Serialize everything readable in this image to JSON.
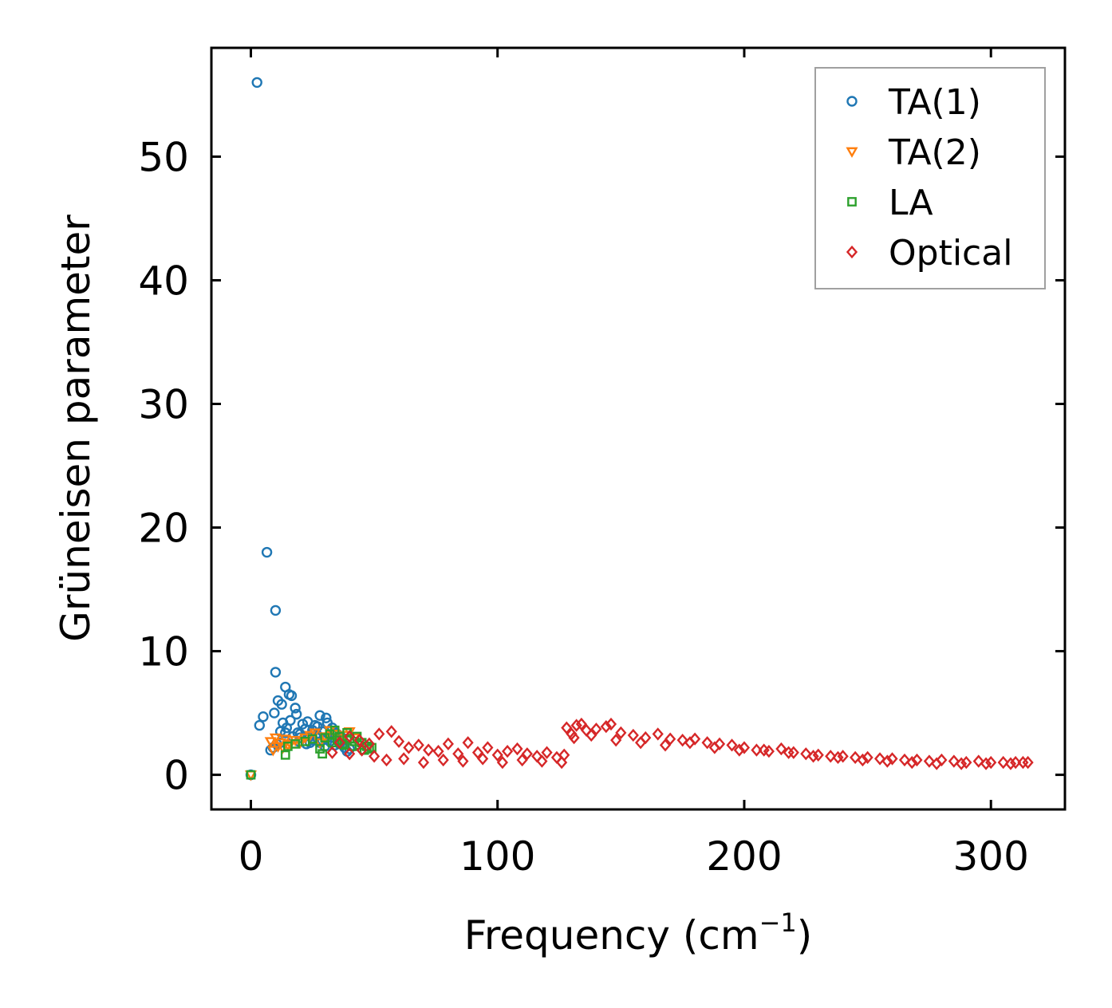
{
  "chart_data": {
    "type": "scatter",
    "title": "",
    "xlabel": "Frequency (cm",
    "xlabel_superscript": "−1",
    "xlabel_suffix": ")",
    "ylabel": "Grüneisen parameter",
    "xlim": [
      -16,
      330
    ],
    "ylim": [
      -2.8,
      58.8
    ],
    "xticks": [
      0,
      100,
      200,
      300
    ],
    "xtick_labels": [
      "0",
      "100",
      "200",
      "300"
    ],
    "yticks": [
      0,
      10,
      20,
      30,
      40,
      50
    ],
    "ytick_labels": [
      "0",
      "10",
      "20",
      "30",
      "40",
      "50"
    ],
    "grid": false,
    "legend_position": "top-right",
    "series": [
      {
        "name": "TA(1)",
        "marker": "circle",
        "color": "#1f77b4",
        "x": [
          0,
          2.5,
          6.5,
          10,
          10,
          3.5,
          5,
          8,
          9,
          9.5,
          10.5,
          11,
          12,
          12.5,
          13,
          14,
          14.5,
          15.5,
          16,
          16.5,
          17,
          18,
          18.5,
          19,
          19.5,
          20,
          21,
          22,
          22.5,
          23,
          24,
          25,
          25.5,
          26,
          26.5,
          27,
          28,
          28,
          29,
          30,
          30.5,
          31,
          32,
          33,
          34,
          35,
          36,
          37,
          38,
          39,
          40,
          12,
          14,
          20,
          24,
          27,
          29,
          31,
          34,
          36
        ],
        "y": [
          0,
          56,
          18,
          13.3,
          8.3,
          4,
          4.7,
          2,
          2.2,
          5,
          2.5,
          6,
          3.5,
          5.7,
          4.2,
          7.1,
          3.8,
          6.5,
          4.4,
          6.4,
          3.1,
          5.4,
          4.9,
          3.4,
          2.7,
          3.3,
          4.1,
          3.7,
          2.5,
          4.3,
          3.1,
          3.6,
          2.8,
          4.0,
          3.2,
          3.9,
          2.6,
          4.8,
          3.5,
          2.3,
          4.6,
          3.0,
          2.7,
          3.8,
          2.4,
          3.3,
          2.6,
          3.0,
          2.2,
          1.9,
          2.1,
          2.6,
          3.4,
          3.0,
          2.6,
          3.2,
          2.8,
          4.2,
          3.4,
          2.5
        ]
      },
      {
        "name": "TA(2)",
        "marker": "triangle-down",
        "color": "#ff7f0e",
        "x": [
          0,
          8,
          9,
          10,
          11,
          12,
          13,
          14,
          15,
          16,
          18,
          20,
          22,
          24,
          26,
          28,
          30,
          32,
          34,
          36,
          38,
          40,
          42
        ],
        "y": [
          0,
          2.7,
          2.0,
          3.0,
          2.3,
          2.6,
          2.2,
          2.9,
          2.4,
          2.5,
          2.8,
          2.6,
          3.0,
          3.2,
          3.4,
          2.6,
          3.1,
          3.6,
          3.3,
          2.9,
          3.2,
          3.5,
          3.0
        ]
      },
      {
        "name": "LA",
        "marker": "square",
        "color": "#2ca02c",
        "x": [
          0,
          14,
          15,
          18,
          22,
          25,
          28,
          29,
          30,
          32,
          33,
          34,
          35,
          36,
          37,
          38,
          39,
          40,
          41,
          42,
          43,
          44,
          45,
          46,
          47,
          48,
          49
        ],
        "y": [
          0,
          1.6,
          2.3,
          2.5,
          2.7,
          2.9,
          2.1,
          1.7,
          3.0,
          3.3,
          2.6,
          3.6,
          2.8,
          3.1,
          2.5,
          2.4,
          3.4,
          2.9,
          2.3,
          2.7,
          3.1,
          2.4,
          2.6,
          2.0,
          2.3,
          2.1,
          2.2
        ]
      },
      {
        "name": "Optical",
        "marker": "diamond",
        "color": "#d62728",
        "x": [
          33,
          36,
          40,
          44,
          48,
          52,
          57,
          60,
          64,
          68,
          72,
          76,
          80,
          84,
          88,
          92,
          96,
          100,
          104,
          108,
          112,
          116,
          120,
          124,
          127,
          128,
          130,
          132,
          134,
          136,
          140,
          144,
          146,
          150,
          155,
          160,
          165,
          170,
          175,
          180,
          185,
          190,
          195,
          200,
          205,
          210,
          215,
          220,
          225,
          230,
          235,
          240,
          245,
          250,
          255,
          260,
          265,
          270,
          275,
          280,
          285,
          290,
          295,
          300,
          305,
          310,
          315,
          40,
          45,
          50,
          55,
          62,
          70,
          78,
          86,
          94,
          102,
          110,
          118,
          126,
          131,
          138,
          148,
          158,
          168,
          178,
          188,
          198,
          208,
          218,
          228,
          238,
          248,
          258,
          268,
          278,
          288,
          298,
          308,
          313
        ],
        "y": [
          1.8,
          2.6,
          3.1,
          2.8,
          2.5,
          3.3,
          3.5,
          2.7,
          2.2,
          2.4,
          2.0,
          1.9,
          2.5,
          1.7,
          2.6,
          1.8,
          2.2,
          1.6,
          1.9,
          2.1,
          1.7,
          1.5,
          1.8,
          1.4,
          1.6,
          3.8,
          3.3,
          4.0,
          4.1,
          3.6,
          3.7,
          3.9,
          4.1,
          3.4,
          3.2,
          3.0,
          3.3,
          2.9,
          2.8,
          2.9,
          2.6,
          2.5,
          2.4,
          2.2,
          2.0,
          1.9,
          2.1,
          1.8,
          1.7,
          1.6,
          1.5,
          1.5,
          1.4,
          1.4,
          1.3,
          1.3,
          1.2,
          1.2,
          1.1,
          1.2,
          1.1,
          1.0,
          1.1,
          1.0,
          1.0,
          1.0,
          1.0,
          1.7,
          2.0,
          1.5,
          1.2,
          1.3,
          1.0,
          1.2,
          1.1,
          1.3,
          1.0,
          1.2,
          1.1,
          1.0,
          3.0,
          3.2,
          2.8,
          2.6,
          2.4,
          2.6,
          2.2,
          2.0,
          2.0,
          1.8,
          1.5,
          1.4,
          1.2,
          1.1,
          1.0,
          0.9,
          0.9,
          0.9,
          0.9,
          1.0
        ]
      }
    ]
  }
}
